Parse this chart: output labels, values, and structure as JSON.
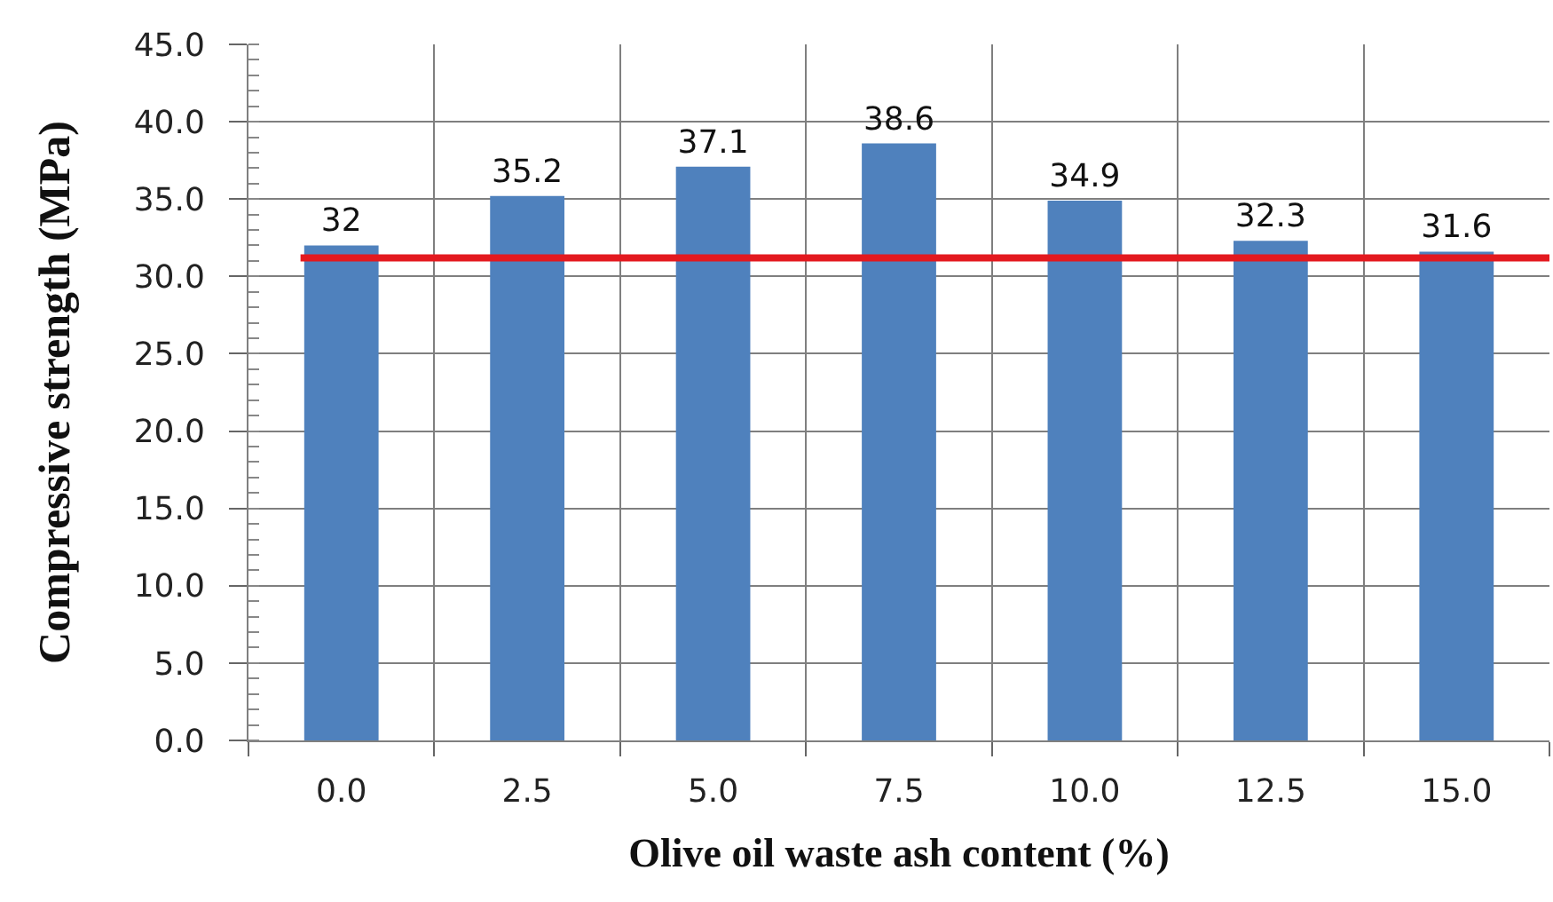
{
  "chart_data": {
    "type": "bar",
    "xlabel": "Olive oil waste ash content (%)",
    "ylabel": "Compressive strength (MPa)",
    "categories": [
      "0.0",
      "2.5",
      "5.0",
      "7.5",
      "10.0",
      "12.5",
      "15.0"
    ],
    "values": [
      32,
      35.2,
      37.1,
      38.6,
      34.9,
      32.3,
      31.6
    ],
    "color": "#4f81bd",
    "ylim": [
      0,
      45
    ],
    "yticks": [
      {
        "value": 0,
        "label": "0.0"
      },
      {
        "value": 5,
        "label": "5.0"
      },
      {
        "value": 10,
        "label": "10.0"
      },
      {
        "value": 15,
        "label": "15.0"
      },
      {
        "value": 20,
        "label": "20.0"
      },
      {
        "value": 25,
        "label": "25.0"
      },
      {
        "value": 30,
        "label": "30.0"
      },
      {
        "value": 35,
        "label": "35.0"
      },
      {
        "value": 40,
        "label": "40.0"
      },
      {
        "value": 45,
        "label": "45.0"
      }
    ],
    "ref_lines": [
      {
        "axis": "y",
        "value": 31.2,
        "color": "#e3191f"
      }
    ],
    "grid": true,
    "data_labels": true
  }
}
